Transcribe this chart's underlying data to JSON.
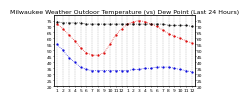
{
  "title": "Milwaukee Weather Outdoor Temperature (vs) Dew Point (Last 24 Hours)",
  "background_color": "#ffffff",
  "grid_color": "#b0b0b0",
  "x_labels": [
    "1",
    "2",
    "3",
    "4",
    "5",
    "6",
    "7",
    "8",
    "9",
    "10",
    "11",
    "12",
    "1",
    "2",
    "3",
    "4",
    "5",
    "6",
    "7",
    "8",
    "9",
    "10",
    "11",
    "12",
    "1"
  ],
  "y_right_labels": [
    "75",
    "70",
    "65",
    "60",
    "55",
    "50",
    "45",
    "40",
    "35",
    "30",
    "25",
    "20"
  ],
  "y_right_values": [
    75,
    70,
    65,
    60,
    55,
    50,
    45,
    40,
    35,
    30,
    25,
    20
  ],
  "outdoor_temp": [
    72,
    68,
    63,
    58,
    52,
    48,
    46,
    46,
    48,
    55,
    63,
    68,
    72,
    74,
    75,
    74,
    72,
    70,
    67,
    64,
    62,
    60,
    58,
    56
  ],
  "dew_point": [
    55,
    50,
    44,
    40,
    36,
    34,
    33,
    33,
    33,
    33,
    33,
    33,
    33,
    34,
    34,
    35,
    35,
    36,
    36,
    36,
    35,
    34,
    33,
    32
  ],
  "indoor_temp": [
    74,
    73,
    73,
    73,
    73,
    72,
    72,
    72,
    72,
    72,
    72,
    72,
    72,
    72,
    72,
    72,
    72,
    72,
    72,
    71,
    71,
    71,
    71,
    70
  ],
  "outdoor_temp_color": "#dd0000",
  "dew_point_color": "#0000dd",
  "indoor_temp_color": "#000000",
  "ylim": [
    20,
    80
  ],
  "y_left_labels": [
    "75",
    "70",
    "65",
    "60",
    "55",
    "50",
    "45",
    "40",
    "35",
    "30",
    "25",
    "20"
  ],
  "y_left_values": [
    75,
    70,
    65,
    60,
    55,
    50,
    45,
    40,
    35,
    30,
    25,
    20
  ],
  "title_fontsize": 4.5,
  "tick_fontsize": 3.2,
  "marker_size": 1.2,
  "line_width": 0.5
}
